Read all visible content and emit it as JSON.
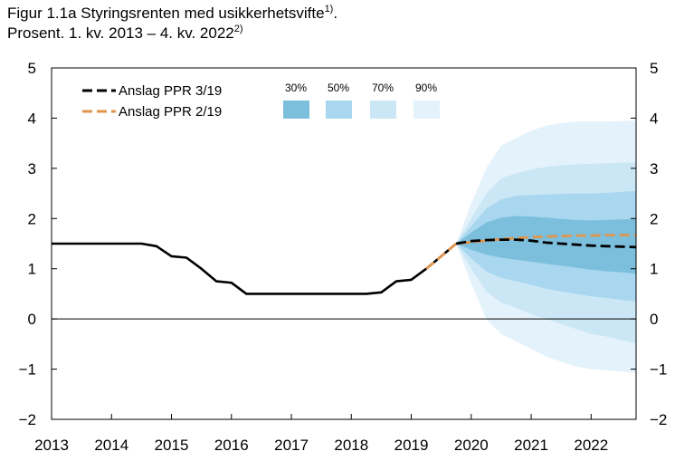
{
  "title": {
    "line1": "Figur 1.1a Styringsrenten med usikkerhetsvifte",
    "line1_sup": "1)",
    "line1_end": ".",
    "line2": "Prosent. 1. kv. 2013 – 4. kv. 2022",
    "line2_sup": "2)"
  },
  "chart_data": {
    "type": "line",
    "x_axis": {
      "range": [
        2013.0,
        2022.75
      ],
      "tick_labels": [
        "2013",
        "2014",
        "2015",
        "2016",
        "2017",
        "2018",
        "2019",
        "2020",
        "2021",
        "2022"
      ]
    },
    "y_axis": {
      "range": [
        -2,
        5
      ],
      "tick_values": [
        -2,
        -1,
        0,
        1,
        2,
        3,
        4,
        5
      ],
      "tick_labels_left": [
        "−2",
        "−1",
        "0",
        "1",
        "2",
        "3",
        "4",
        "5"
      ],
      "tick_labels_right": [
        "−2",
        "−1",
        "0",
        "1",
        "2",
        "3",
        "4",
        "5"
      ]
    },
    "legend_placement": "top-left",
    "series": [
      {
        "name": "Anslag PPR 3/19",
        "color": "#000000",
        "historical": [
          [
            2013.0,
            1.5
          ],
          [
            2013.25,
            1.5
          ],
          [
            2013.5,
            1.5
          ],
          [
            2013.75,
            1.5
          ],
          [
            2014.0,
            1.5
          ],
          [
            2014.25,
            1.5
          ],
          [
            2014.5,
            1.5
          ],
          [
            2014.75,
            1.45
          ],
          [
            2015.0,
            1.25
          ],
          [
            2015.25,
            1.22
          ],
          [
            2015.5,
            1.0
          ],
          [
            2015.75,
            0.75
          ],
          [
            2016.0,
            0.72
          ],
          [
            2016.25,
            0.5
          ],
          [
            2016.5,
            0.5
          ],
          [
            2016.75,
            0.5
          ],
          [
            2017.0,
            0.5
          ],
          [
            2017.25,
            0.5
          ],
          [
            2017.5,
            0.5
          ],
          [
            2017.75,
            0.5
          ],
          [
            2018.0,
            0.5
          ],
          [
            2018.25,
            0.5
          ],
          [
            2018.5,
            0.53
          ],
          [
            2018.75,
            0.75
          ],
          [
            2019.0,
            0.78
          ],
          [
            2019.25,
            1.0
          ],
          [
            2019.5,
            1.25
          ],
          [
            2019.75,
            1.5
          ]
        ],
        "forecast": [
          [
            2019.75,
            1.5
          ],
          [
            2020.0,
            1.55
          ],
          [
            2020.25,
            1.57
          ],
          [
            2020.5,
            1.58
          ],
          [
            2020.75,
            1.58
          ],
          [
            2021.0,
            1.56
          ],
          [
            2021.25,
            1.52
          ],
          [
            2021.5,
            1.5
          ],
          [
            2021.75,
            1.48
          ],
          [
            2022.0,
            1.46
          ],
          [
            2022.25,
            1.45
          ],
          [
            2022.5,
            1.44
          ],
          [
            2022.75,
            1.43
          ]
        ]
      },
      {
        "name": "Anslag PPR 2/19",
        "color": "#e0954d",
        "forecast": [
          [
            2019.25,
            1.0
          ],
          [
            2019.5,
            1.25
          ],
          [
            2019.75,
            1.5
          ],
          [
            2020.0,
            1.53
          ],
          [
            2020.25,
            1.56
          ],
          [
            2020.5,
            1.59
          ],
          [
            2020.75,
            1.61
          ],
          [
            2021.0,
            1.63
          ],
          [
            2021.25,
            1.64
          ],
          [
            2021.5,
            1.65
          ],
          [
            2021.75,
            1.66
          ],
          [
            2022.0,
            1.66
          ],
          [
            2022.25,
            1.67
          ],
          [
            2022.5,
            1.67
          ],
          [
            2022.75,
            1.67
          ]
        ]
      }
    ],
    "fan_chart": {
      "x": [
        2019.75,
        2020.0,
        2020.25,
        2020.5,
        2020.75,
        2021.0,
        2021.25,
        2021.5,
        2021.75,
        2022.0,
        2022.25,
        2022.5,
        2022.75
      ],
      "bands": [
        {
          "label": "90%",
          "color": "#e3f2fb",
          "upper": [
            1.5,
            2.3,
            3.0,
            3.45,
            3.6,
            3.75,
            3.85,
            3.9,
            3.93,
            3.93,
            3.93,
            3.94,
            3.95
          ],
          "lower": [
            1.5,
            0.7,
            0.0,
            -0.3,
            -0.45,
            -0.6,
            -0.75,
            -0.85,
            -0.95,
            -1.0,
            -1.02,
            -1.05,
            -1.07
          ]
        },
        {
          "label": "70%",
          "color": "#cbe7f6",
          "upper": [
            1.5,
            2.0,
            2.5,
            2.8,
            2.9,
            2.98,
            3.03,
            3.06,
            3.08,
            3.09,
            3.1,
            3.11,
            3.12
          ],
          "lower": [
            1.5,
            1.0,
            0.55,
            0.32,
            0.22,
            0.1,
            0.0,
            -0.1,
            -0.2,
            -0.3,
            -0.35,
            -0.42,
            -0.48
          ]
        },
        {
          "label": "50%",
          "color": "#a9d7ef",
          "upper": [
            1.5,
            1.85,
            2.2,
            2.38,
            2.45,
            2.47,
            2.48,
            2.49,
            2.5,
            2.5,
            2.51,
            2.53,
            2.55
          ],
          "lower": [
            1.5,
            1.2,
            0.95,
            0.82,
            0.75,
            0.68,
            0.6,
            0.55,
            0.5,
            0.45,
            0.42,
            0.38,
            0.35
          ]
        },
        {
          "label": "30%",
          "color": "#7cbfdc",
          "upper": [
            1.5,
            1.72,
            1.92,
            2.02,
            2.05,
            2.04,
            2.02,
            1.99,
            1.97,
            1.96,
            1.97,
            1.98,
            1.99
          ],
          "lower": [
            1.5,
            1.38,
            1.28,
            1.22,
            1.18,
            1.14,
            1.1,
            1.06,
            1.02,
            0.98,
            0.95,
            0.93,
            0.9
          ]
        }
      ]
    },
    "zero_line": true,
    "grid": false
  }
}
